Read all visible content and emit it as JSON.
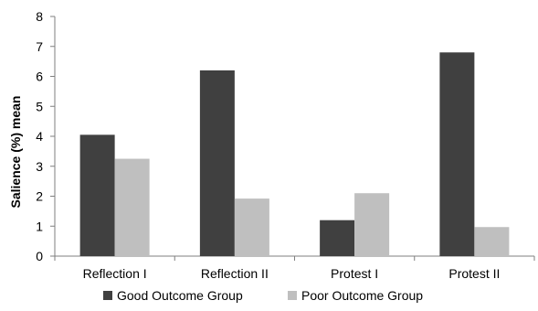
{
  "chart_data": {
    "type": "bar",
    "title": "",
    "xlabel": "",
    "ylabel": "Salience (%) mean",
    "ylim": [
      0,
      8
    ],
    "yticks": [
      "0",
      "1",
      "2",
      "3",
      "4",
      "5",
      "6",
      "7",
      "8"
    ],
    "grid": false,
    "legend_position": "bottom",
    "categories": [
      "Reflection I",
      "Reflection II",
      "Protest I",
      "Protest II"
    ],
    "series": [
      {
        "name": "Good Outcome Group",
        "color": "#404040",
        "values": [
          4.05,
          6.2,
          1.2,
          6.8
        ]
      },
      {
        "name": "Poor Outcome Group",
        "color": "#bfbfbf",
        "values": [
          3.25,
          1.92,
          2.1,
          0.97
        ]
      }
    ]
  }
}
